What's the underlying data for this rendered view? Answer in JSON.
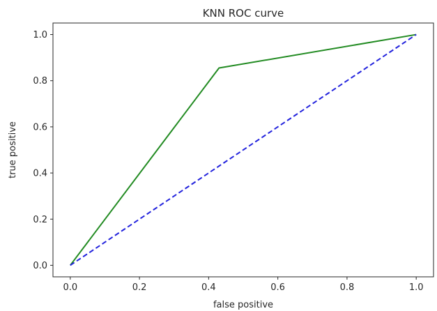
{
  "chart_data": {
    "type": "line",
    "title": "KNN ROC curve",
    "xlabel": "false positive",
    "ylabel": "true positive",
    "xlim": [
      -0.05,
      1.05
    ],
    "ylim": [
      -0.05,
      1.05
    ],
    "xticks": [
      0.0,
      0.2,
      0.4,
      0.6,
      0.8,
      1.0
    ],
    "xtick_labels": [
      "0.0",
      "0.2",
      "0.4",
      "0.6",
      "0.8",
      "1.0"
    ],
    "yticks": [
      0.0,
      0.2,
      0.4,
      0.6,
      0.8,
      1.0
    ],
    "ytick_labels": [
      "0.0",
      "0.2",
      "0.4",
      "0.6",
      "0.8",
      "1.0"
    ],
    "grid": false,
    "series": [
      {
        "x": [
          0.0,
          0.43,
          1.0
        ],
        "y": [
          0.0,
          0.855,
          1.0
        ],
        "color": "#228b22",
        "style": "solid"
      },
      {
        "x": [
          0.0,
          1.0
        ],
        "y": [
          0.0,
          1.0
        ],
        "color": "#2222dd",
        "style": "dashed"
      }
    ]
  }
}
